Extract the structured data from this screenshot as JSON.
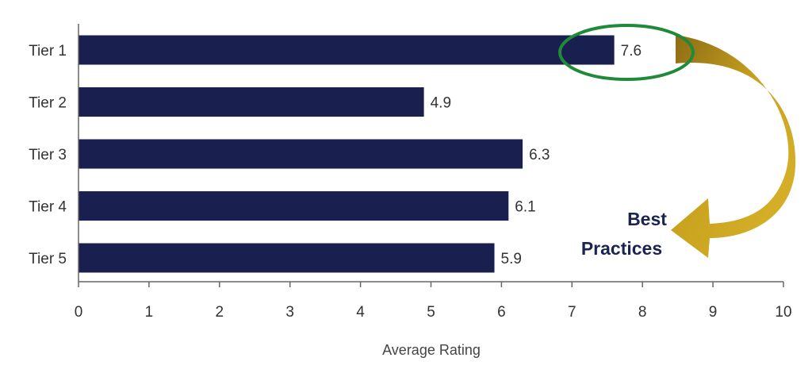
{
  "chart_data": {
    "type": "bar",
    "orientation": "horizontal",
    "categories": [
      "Tier 1",
      "Tier 2",
      "Tier 3",
      "Tier 4",
      "Tier 5"
    ],
    "values": [
      7.6,
      4.9,
      6.3,
      6.1,
      5.9
    ],
    "value_labels": [
      "7.6",
      "4.9",
      "6.3",
      "6.1",
      "5.9"
    ],
    "xlabel": "Average Rating",
    "ylabel": "",
    "xlim": [
      0,
      10
    ],
    "x_ticks": [
      "0",
      "1",
      "2",
      "3",
      "4",
      "5",
      "6",
      "7",
      "8",
      "9",
      "10"
    ],
    "grid": false,
    "bar_color": "#19204f",
    "annotation": {
      "text_line1": "Best",
      "text_line2": "Practices",
      "text_color": "#1b2350",
      "highlight_category": "Tier 1",
      "ellipse_color": "#1e8a3a",
      "arrow_color": "#c9a21f"
    }
  }
}
